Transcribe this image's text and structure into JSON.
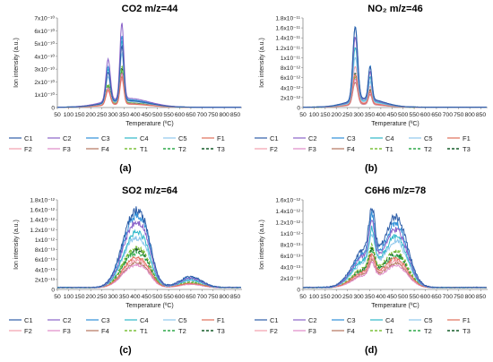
{
  "chart_data": [
    {
      "type": "line",
      "panel_label": "(a)",
      "title": "CO2  m/z=44",
      "xlabel": "Temperature (ºC)",
      "ylabel": "Ion intensity (a.u.)",
      "x_ticks": [
        50,
        100,
        150,
        200,
        250,
        300,
        350,
        400,
        450,
        500,
        550,
        600,
        650,
        700,
        750,
        800,
        850
      ],
      "xlim": [
        50,
        880
      ],
      "y_ticks": [
        "0",
        "1x10⁻¹⁰",
        "2x10⁻¹⁰",
        "3x10⁻¹⁰",
        "4x10⁻¹⁰",
        "5x10⁻¹⁰",
        "6x10⁻¹⁰",
        "7x10⁻¹⁰"
      ],
      "ylim": [
        0,
        7e-10
      ],
      "grid": false,
      "legend_position": "bottom",
      "shape": {
        "peaks": [
          {
            "center": 278,
            "width": 14,
            "amp": 0.55
          },
          {
            "center": 340,
            "width": 12,
            "amp": 1.0
          }
        ],
        "broad": {
          "center": 360,
          "width": 140,
          "amp": 0.12
        },
        "baseline": 0.003,
        "noise": 0.006
      },
      "series_peaks": [
        4.8e-10,
        6.6e-10,
        5.6e-10,
        5.2e-10,
        4.2e-10,
        2.4e-10,
        2.2e-10,
        2.6e-10,
        2.7e-10,
        3.2e-10,
        2.9e-10,
        3.1e-10
      ]
    },
    {
      "type": "line",
      "panel_label": "(b)",
      "title": "NO₂  m/z=46",
      "xlabel": "Temperature (ºC)",
      "ylabel": "Ion intensity (a.u.)",
      "x_ticks": [
        50,
        100,
        150,
        200,
        250,
        300,
        350,
        400,
        450,
        500,
        550,
        600,
        650,
        700,
        750,
        800,
        850
      ],
      "xlim": [
        50,
        880
      ],
      "y_ticks": [
        "0",
        "2x10⁻¹²",
        "4x10⁻¹²",
        "6x10⁻¹²",
        "8x10⁻¹²",
        "1x10⁻¹¹",
        "1.2x10⁻¹¹",
        "1.4x10⁻¹¹",
        "1.6x10⁻¹¹",
        "1.8x10⁻¹¹"
      ],
      "ylim": [
        0,
        1.8e-11
      ],
      "grid": false,
      "legend_position": "bottom",
      "shape": {
        "peaks": [
          {
            "center": 285,
            "width": 15,
            "amp": 1.0
          },
          {
            "center": 352,
            "width": 11,
            "amp": 0.45
          }
        ],
        "broad": {
          "center": 330,
          "width": 110,
          "amp": 0.12
        },
        "baseline": 0.004,
        "noise": 0.006
      },
      "series_peaks": [
        1.6e-11,
        1.4e-11,
        1.62e-11,
        1.2e-11,
        1e-11,
        6.5e-12,
        8.2e-12,
        5.6e-12,
        5e-12,
        6.4e-12,
        6e-12,
        6.8e-12
      ]
    },
    {
      "type": "line",
      "panel_label": "(c)",
      "title": "SO2  m/z=64",
      "xlabel": "Temperature (ºC)",
      "ylabel": "Ion intensity (a.u.)",
      "x_ticks": [
        50,
        100,
        150,
        200,
        250,
        300,
        350,
        400,
        450,
        500,
        550,
        600,
        650,
        700,
        750,
        800,
        850
      ],
      "xlim": [
        50,
        880
      ],
      "y_ticks": [
        "0",
        "2x10⁻¹³",
        "4x10⁻¹³",
        "6x10⁻¹³",
        "8x10⁻¹³",
        "1x10⁻¹²",
        "1.2x10⁻¹²",
        "1.4x10⁻¹²",
        "1.6x10⁻¹²",
        "1.8x10⁻¹²"
      ],
      "ylim": [
        0,
        1.8e-12
      ],
      "grid": false,
      "legend_position": "bottom",
      "shape": {
        "peaks": [
          {
            "center": 395,
            "width": 75,
            "amp": 1.0
          },
          {
            "center": 450,
            "width": 40,
            "amp": 0.25
          }
        ],
        "broad": {
          "center": 650,
          "width": 70,
          "amp": 0.15
        },
        "baseline": 0.02,
        "noise": 0.05
      },
      "series_peaks": [
        1.55e-12,
        1.3e-12,
        1.45e-12,
        1.1e-12,
        1e-12,
        6e-13,
        5.5e-13,
        4.5e-13,
        5e-13,
        8e-13,
        7e-13,
        7.5e-13
      ]
    },
    {
      "type": "line",
      "panel_label": "(d)",
      "title": "C6H6  m/z=78",
      "xlabel": "Temperature (ºC)",
      "ylabel": "Ion intensity (a.u.)",
      "x_ticks": [
        50,
        100,
        150,
        200,
        250,
        300,
        350,
        400,
        450,
        500,
        550,
        600,
        650,
        700,
        750,
        800,
        850
      ],
      "xlim": [
        50,
        880
      ],
      "y_ticks": [
        "0",
        "2x10⁻¹³",
        "4x10⁻¹³",
        "6x10⁻¹³",
        "8x10⁻¹³",
        "1x10⁻¹²",
        "1.2x10⁻¹²",
        "1.4x10⁻¹²",
        "1.6x10⁻¹²"
      ],
      "ylim": [
        0,
        1.6e-12
      ],
      "grid": false,
      "legend_position": "bottom",
      "shape": {
        "peaks": [
          {
            "center": 360,
            "width": 18,
            "amp": 0.55
          },
          {
            "center": 470,
            "width": 70,
            "amp": 0.9
          }
        ],
        "broad": {
          "center": 330,
          "width": 80,
          "amp": 0.5
        },
        "baseline": 0.02,
        "noise": 0.05
      },
      "series_peaks": [
        1.45e-12,
        1.2e-12,
        1.3e-12,
        1.05e-12,
        9.5e-13,
        6e-13,
        5.5e-13,
        4.5e-13,
        5e-13,
        7.5e-13,
        6.5e-13,
        7e-13
      ]
    }
  ],
  "series": [
    {
      "name": "C1",
      "color": "#2e5ea8",
      "dash": "solid"
    },
    {
      "name": "C2",
      "color": "#8a63c9",
      "dash": "solid"
    },
    {
      "name": "C3",
      "color": "#2f8fd8",
      "dash": "solid"
    },
    {
      "name": "C4",
      "color": "#2fb7c9",
      "dash": "solid"
    },
    {
      "name": "C5",
      "color": "#8fc8ec",
      "dash": "solid"
    },
    {
      "name": "F1",
      "color": "#e0705a",
      "dash": "solid"
    },
    {
      "name": "F2",
      "color": "#f2a0ae",
      "dash": "solid"
    },
    {
      "name": "F3",
      "color": "#e08ac8",
      "dash": "solid"
    },
    {
      "name": "F4",
      "color": "#b4765e",
      "dash": "solid"
    },
    {
      "name": "T1",
      "color": "#7cc03a",
      "dash": "dashed"
    },
    {
      "name": "T2",
      "color": "#2ea84a",
      "dash": "dashed"
    },
    {
      "name": "T3",
      "color": "#145c28",
      "dash": "dashed"
    }
  ]
}
